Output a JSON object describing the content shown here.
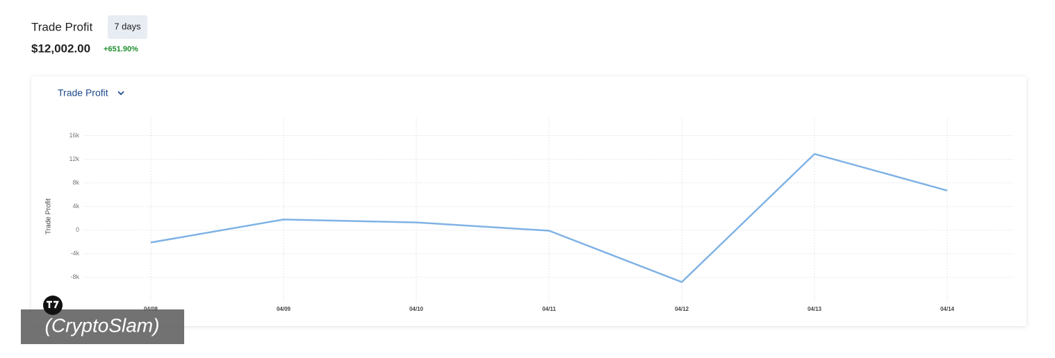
{
  "header": {
    "title": "Trade Profit",
    "period": "7 days",
    "value": "$12,002.00",
    "change": "+651.90%"
  },
  "chart_data": {
    "type": "line",
    "title": "Trade Profit",
    "y_label": "Trade Profit",
    "categories": [
      "04/08",
      "04/09",
      "04/10",
      "04/11",
      "04/12",
      "04/13",
      "04/14"
    ],
    "series": [
      {
        "name": "Trade Profit",
        "color": "#7fb2e5",
        "values": [
          -2100,
          1800,
          1300,
          -100,
          -8800,
          12900,
          6700
        ]
      }
    ],
    "ylim": [
      -11500,
      19000
    ],
    "yticks": [
      {
        "value": -8000,
        "label": "-8k"
      },
      {
        "value": -4000,
        "label": "-4k"
      },
      0,
      {
        "value": 4000,
        "label": "4k"
      },
      {
        "value": 8000,
        "label": "8k"
      },
      {
        "value": 12000,
        "label": "12k"
      },
      {
        "value": 16000,
        "label": "16k"
      }
    ],
    "grid": true
  },
  "watermark": "(CryptoSlam)"
}
